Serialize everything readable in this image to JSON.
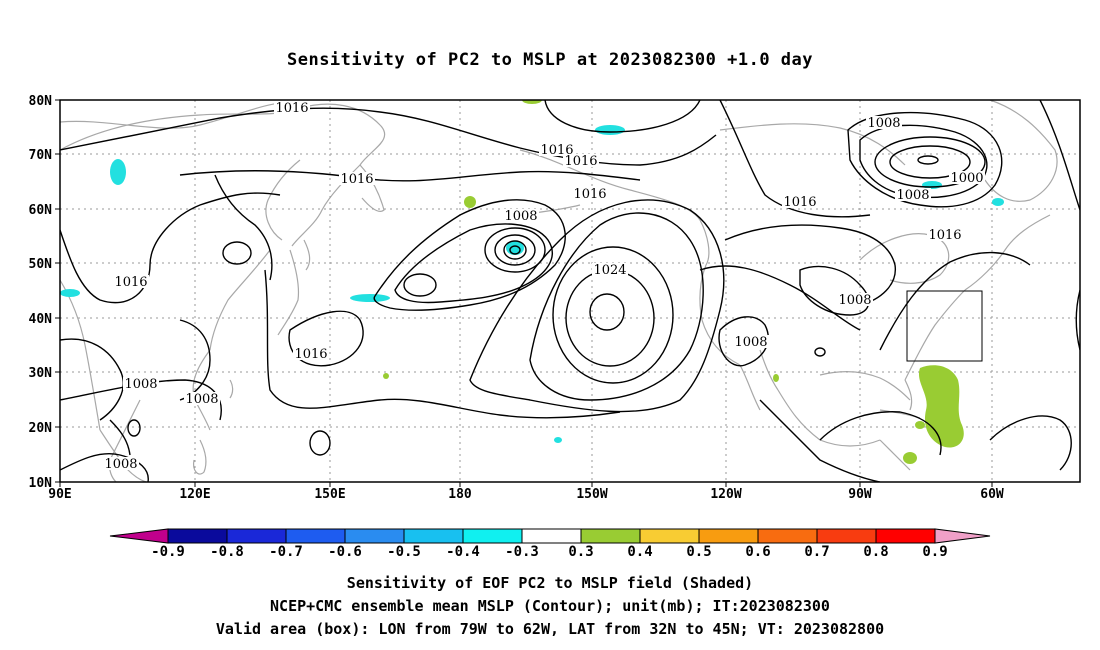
{
  "title": "Sensitivity of PC2 to MSLP at 2023082300 +1.0 day",
  "map": {
    "lon_ticks": [
      "90E",
      "120E",
      "150E",
      "180",
      "150W",
      "120W",
      "90W",
      "60W"
    ],
    "lat_ticks": [
      "80N",
      "70N",
      "60N",
      "50N",
      "40N",
      "30N",
      "20N",
      "10N"
    ],
    "contour_labels": [
      {
        "text": "1016"
      },
      {
        "text": "1016"
      },
      {
        "text": "1016"
      },
      {
        "text": "1016"
      },
      {
        "text": "1016"
      },
      {
        "text": "1016"
      },
      {
        "text": "1016"
      },
      {
        "text": "1016"
      },
      {
        "text": "1016"
      },
      {
        "text": "1008"
      },
      {
        "text": "1008"
      },
      {
        "text": "1008"
      },
      {
        "text": "1008"
      },
      {
        "text": "1008"
      },
      {
        "text": "1008"
      },
      {
        "text": "1008"
      },
      {
        "text": "1008"
      },
      {
        "text": "1024"
      },
      {
        "text": "1000"
      }
    ],
    "colors": {
      "coast": "#a8a8a8",
      "contour": "#000000",
      "grid": "#9a9a9a",
      "negative_shade": "#22e0e0",
      "positive_shade": "#99cc33"
    }
  },
  "colorbar": {
    "labels": [
      "-0.9",
      "-0.8",
      "-0.7",
      "-0.6",
      "-0.5",
      "-0.4",
      "-0.3",
      "0.3",
      "0.4",
      "0.5",
      "0.6",
      "0.7",
      "0.8",
      "0.9"
    ],
    "colors": [
      "#c0008c",
      "#0a0a9c",
      "#1a28d8",
      "#1e5cf0",
      "#2a8cf0",
      "#18c0f0",
      "#10f0f0",
      "#ffffff",
      "#99cc33",
      "#f8cc33",
      "#f89c10",
      "#f86c10",
      "#f83c10",
      "#ff0000",
      "#f0a0c8"
    ]
  },
  "captions": {
    "line1": "Sensitivity of EOF PC2 to MSLP field (Shaded)",
    "line2": "NCEP+CMC ensemble mean MSLP (Contour); unit(mb); IT:2023082300",
    "line3": "Valid area (box): LON from 79W to 62W, LAT from 32N to 45N; VT: 2023082800"
  }
}
